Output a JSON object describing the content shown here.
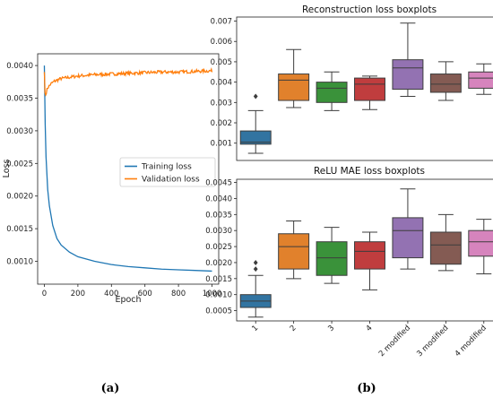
{
  "chart_data": [
    {
      "type": "line",
      "title": "",
      "xlabel": "Epoch",
      "ylabel": "Loss",
      "xlim": [
        -40,
        1040
      ],
      "ylim": [
        0.00065,
        0.00418
      ],
      "xticks": [
        0,
        200,
        400,
        600,
        800,
        1000
      ],
      "yticks": [
        0.001,
        0.0015,
        0.002,
        0.0025,
        0.003,
        0.0035,
        0.004
      ],
      "ytick_labels": [
        "0.0010",
        "0.0015",
        "0.0020",
        "0.0025",
        "0.0030",
        "0.0035",
        "0.0040"
      ],
      "legend_placement": "center-right",
      "grid": false,
      "series": [
        {
          "name": "Training loss",
          "color": "#1f77b4",
          "x": [
            0,
            5,
            10,
            20,
            30,
            50,
            75,
            100,
            150,
            200,
            300,
            400,
            500,
            600,
            700,
            800,
            900,
            1000
          ],
          "y": [
            0.004,
            0.0031,
            0.0026,
            0.0021,
            0.00185,
            0.00155,
            0.00135,
            0.00125,
            0.00114,
            0.00107,
            0.001,
            0.00095,
            0.00092,
            0.0009,
            0.00088,
            0.00087,
            0.00086,
            0.00085
          ]
        },
        {
          "name": "Validation loss",
          "color": "#ff7f0e",
          "x": [
            0,
            5,
            10,
            20,
            40,
            60,
            100,
            150,
            200,
            300,
            400,
            500,
            600,
            700,
            800,
            900,
            1000
          ],
          "y": [
            0.0039,
            0.0035,
            0.00358,
            0.00366,
            0.00372,
            0.00376,
            0.0038,
            0.00382,
            0.00384,
            0.00386,
            0.00387,
            0.00388,
            0.00389,
            0.0039,
            0.0039,
            0.00391,
            0.00392
          ]
        }
      ]
    },
    {
      "type": "boxplot",
      "title": "Reconstruction loss boxplots",
      "ylim": [
        0.00015,
        0.0072
      ],
      "yticks": [
        0.001,
        0.002,
        0.003,
        0.004,
        0.005,
        0.006,
        0.007
      ],
      "ytick_labels": [
        "0.001",
        "0.002",
        "0.003",
        "0.004",
        "0.005",
        "0.006",
        "0.007"
      ],
      "categories": [
        "1",
        "2",
        "3",
        "4",
        "2 modified",
        "3 modified",
        "4 modified"
      ],
      "colors": [
        "#3274a1",
        "#e1812c",
        "#3a923a",
        "#c03d3e",
        "#9372b2",
        "#845b53",
        "#d684bd"
      ],
      "boxes": [
        {
          "whislo": 0.0005,
          "q1": 0.00095,
          "med": 0.00105,
          "q3": 0.0016,
          "whishi": 0.0026,
          "fliers": [
            0.0033
          ]
        },
        {
          "whislo": 0.00275,
          "q1": 0.0031,
          "med": 0.0041,
          "q3": 0.0044,
          "whishi": 0.0056,
          "fliers": []
        },
        {
          "whislo": 0.0026,
          "q1": 0.003,
          "med": 0.0037,
          "q3": 0.004,
          "whishi": 0.0045,
          "fliers": []
        },
        {
          "whislo": 0.00265,
          "q1": 0.0031,
          "med": 0.0039,
          "q3": 0.0042,
          "whishi": 0.0043,
          "fliers": []
        },
        {
          "whislo": 0.0033,
          "q1": 0.00365,
          "med": 0.0047,
          "q3": 0.0051,
          "whishi": 0.0069,
          "fliers": []
        },
        {
          "whislo": 0.0031,
          "q1": 0.0035,
          "med": 0.0039,
          "q3": 0.0044,
          "whishi": 0.005,
          "fliers": []
        },
        {
          "whislo": 0.0034,
          "q1": 0.0037,
          "med": 0.0042,
          "q3": 0.0045,
          "whishi": 0.0049,
          "fliers": []
        }
      ]
    },
    {
      "type": "boxplot",
      "title": "ReLU MAE loss boxplots",
      "ylim": [
        0.00018,
        0.0046
      ],
      "yticks": [
        0.0005,
        0.001,
        0.0015,
        0.002,
        0.0025,
        0.003,
        0.0035,
        0.004,
        0.0045
      ],
      "ytick_labels": [
        "0.0005",
        "0.0010",
        "0.0015",
        "0.0020",
        "0.0025",
        "0.0030",
        "0.0035",
        "0.0040",
        "0.0045"
      ],
      "categories": [
        "1",
        "2",
        "3",
        "4",
        "2 modified",
        "3 modified",
        "4 modified"
      ],
      "colors": [
        "#3274a1",
        "#e1812c",
        "#3a923a",
        "#c03d3e",
        "#9372b2",
        "#845b53",
        "#d684bd"
      ],
      "boxes": [
        {
          "whislo": 0.0003,
          "q1": 0.0006,
          "med": 0.0008,
          "q3": 0.001,
          "whishi": 0.0016,
          "fliers": [
            0.0018,
            0.002
          ]
        },
        {
          "whislo": 0.0015,
          "q1": 0.0018,
          "med": 0.0025,
          "q3": 0.0029,
          "whishi": 0.0033,
          "fliers": []
        },
        {
          "whislo": 0.00135,
          "q1": 0.0016,
          "med": 0.00215,
          "q3": 0.00265,
          "whishi": 0.0031,
          "fliers": []
        },
        {
          "whislo": 0.00115,
          "q1": 0.0018,
          "med": 0.00235,
          "q3": 0.00265,
          "whishi": 0.00295,
          "fliers": []
        },
        {
          "whislo": 0.0018,
          "q1": 0.00215,
          "med": 0.003,
          "q3": 0.0034,
          "whishi": 0.0043,
          "fliers": []
        },
        {
          "whislo": 0.00175,
          "q1": 0.00195,
          "med": 0.00255,
          "q3": 0.00295,
          "whishi": 0.0035,
          "fliers": []
        },
        {
          "whislo": 0.00165,
          "q1": 0.0022,
          "med": 0.00265,
          "q3": 0.003,
          "whishi": 0.00335,
          "fliers": []
        }
      ]
    }
  ],
  "captions": {
    "a": "(a)",
    "b": "(b)"
  }
}
